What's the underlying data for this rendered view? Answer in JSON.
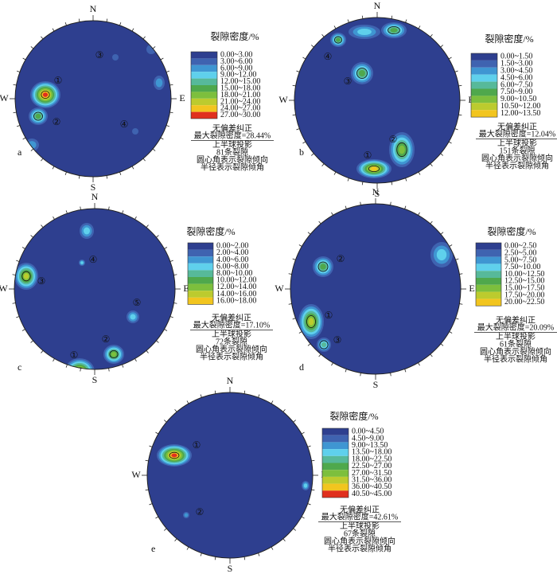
{
  "panels": [
    {
      "label": "a",
      "compass": [
        "N",
        "E",
        "S",
        "W"
      ],
      "legend": {
        "title": "裂隙密度/%",
        "entries": [
          {
            "label": "0.00~3.00",
            "color": "#2e3f8f"
          },
          {
            "label": "3.00~6.00",
            "color": "#3f63b0"
          },
          {
            "label": "6.00~9.00",
            "color": "#3f96d2"
          },
          {
            "label": "9.00~12.00",
            "color": "#5fd0ec"
          },
          {
            "label": "12.00~15.00",
            "color": "#57b99a"
          },
          {
            "label": "15.00~18.00",
            "color": "#4fa84c"
          },
          {
            "label": "18.00~21.00",
            "color": "#7dbf3d"
          },
          {
            "label": "21.00~24.00",
            "color": "#bccb2e"
          },
          {
            "label": "24.00~27.00",
            "color": "#f2c51f"
          },
          {
            "label": "27.00~30.00",
            "color": "#e0301e"
          }
        ]
      },
      "notes": [
        "无偏差纠正",
        "最大裂隙密度=28.44%",
        "上半球投影",
        "81条裂隙",
        "圆心角表示裂隙倾向",
        "半径表示裂隙倾角"
      ],
      "sets": [
        "①",
        "②",
        "③",
        "④"
      ]
    },
    {
      "label": "b",
      "compass": [
        "N",
        "E",
        "S",
        "W"
      ],
      "legend": {
        "title": "裂隙密度/%",
        "entries": [
          {
            "label": "0.00~1.50",
            "color": "#2e3f8f"
          },
          {
            "label": "1.50~3.00",
            "color": "#3f63b0"
          },
          {
            "label": "3.00~4.50",
            "color": "#3f96d2"
          },
          {
            "label": "4.50~6.00",
            "color": "#5fd0ec"
          },
          {
            "label": "6.00~7.50",
            "color": "#57b99a"
          },
          {
            "label": "7.50~9.00",
            "color": "#4fa84c"
          },
          {
            "label": "9.00~10.50",
            "color": "#7dbf3d"
          },
          {
            "label": "10.50~12.00",
            "color": "#bccb2e"
          },
          {
            "label": "12.00~13.50",
            "color": "#f2c51f"
          }
        ]
      },
      "notes": [
        "无偏差纠正",
        "最大裂隙密度=12.04%",
        "上半球投影",
        "151条裂隙",
        "圆心角表示裂隙倾向",
        "半径表示裂隙倾角"
      ],
      "sets": [
        "①",
        "②",
        "③",
        "④"
      ]
    },
    {
      "label": "c",
      "compass": [
        "N",
        "E",
        "S",
        "W"
      ],
      "legend": {
        "title": "裂隙密度/%",
        "entries": [
          {
            "label": "0.00~2.00",
            "color": "#2e3f8f"
          },
          {
            "label": "2.00~4.00",
            "color": "#3f63b0"
          },
          {
            "label": "4.00~6.00",
            "color": "#3f96d2"
          },
          {
            "label": "6.00~8.00",
            "color": "#5fd0ec"
          },
          {
            "label": "8.00~10.00",
            "color": "#57b99a"
          },
          {
            "label": "10.00~12.00",
            "color": "#4fa84c"
          },
          {
            "label": "12.00~14.00",
            "color": "#7dbf3d"
          },
          {
            "label": "14.00~16.00",
            "color": "#bccb2e"
          },
          {
            "label": "16.00~18.00",
            "color": "#f2c51f"
          }
        ]
      },
      "notes": [
        "无偏差纠正",
        "最大裂隙密度=17.10%",
        "上半球投影",
        "72条裂隙",
        "圆心角表示裂隙倾向",
        "半径表示裂隙倾角"
      ],
      "sets": [
        "①",
        "②",
        "③",
        "④",
        "⑤"
      ]
    },
    {
      "label": "d",
      "compass": [
        "N",
        "E",
        "S",
        "W"
      ],
      "legend": {
        "title": "裂隙密度/%",
        "entries": [
          {
            "label": "0.00~2.50",
            "color": "#2e3f8f"
          },
          {
            "label": "2.50~5.00",
            "color": "#3f63b0"
          },
          {
            "label": "5.00~7.50",
            "color": "#3f96d2"
          },
          {
            "label": "7.50~10.00",
            "color": "#5fd0ec"
          },
          {
            "label": "10.00~12.50",
            "color": "#57b99a"
          },
          {
            "label": "12.50~15.00",
            "color": "#4fa84c"
          },
          {
            "label": "15.00~17.50",
            "color": "#7dbf3d"
          },
          {
            "label": "17.50~20.00",
            "color": "#bccb2e"
          },
          {
            "label": "20.00~22.50",
            "color": "#f2c51f"
          }
        ]
      },
      "notes": [
        "无偏差纠正",
        "最大裂隙密度=20.09%",
        "上半球投影",
        "61条裂隙",
        "圆心角表示裂隙倾向",
        "半径表示裂隙倾角"
      ],
      "sets": [
        "①",
        "②",
        "③"
      ]
    },
    {
      "label": "e",
      "compass": [
        "N",
        "E",
        "S",
        "W"
      ],
      "legend": {
        "title": "裂隙密度/%",
        "entries": [
          {
            "label": "0.00~4.50",
            "color": "#2e3f8f"
          },
          {
            "label": "4.50~9.00",
            "color": "#3f63b0"
          },
          {
            "label": "9.00~13.50",
            "color": "#3f96d2"
          },
          {
            "label": "13.50~18.00",
            "color": "#5fd0ec"
          },
          {
            "label": "18.00~22.50",
            "color": "#57b99a"
          },
          {
            "label": "22.50~27.00",
            "color": "#4fa84c"
          },
          {
            "label": "27.00~31.50",
            "color": "#7dbf3d"
          },
          {
            "label": "31.50~36.00",
            "color": "#bccb2e"
          },
          {
            "label": "36.00~40.50",
            "color": "#f2c51f"
          },
          {
            "label": "40.50~45.00",
            "color": "#e0301e"
          }
        ]
      },
      "notes": [
        "无偏差纠正",
        "最大裂隙密度=42.61%",
        "上半球投影",
        "67条裂隙",
        "圆心角表示裂隙倾向",
        "半径表示裂隙倾角"
      ],
      "sets": [
        "①",
        "②"
      ]
    }
  ]
}
